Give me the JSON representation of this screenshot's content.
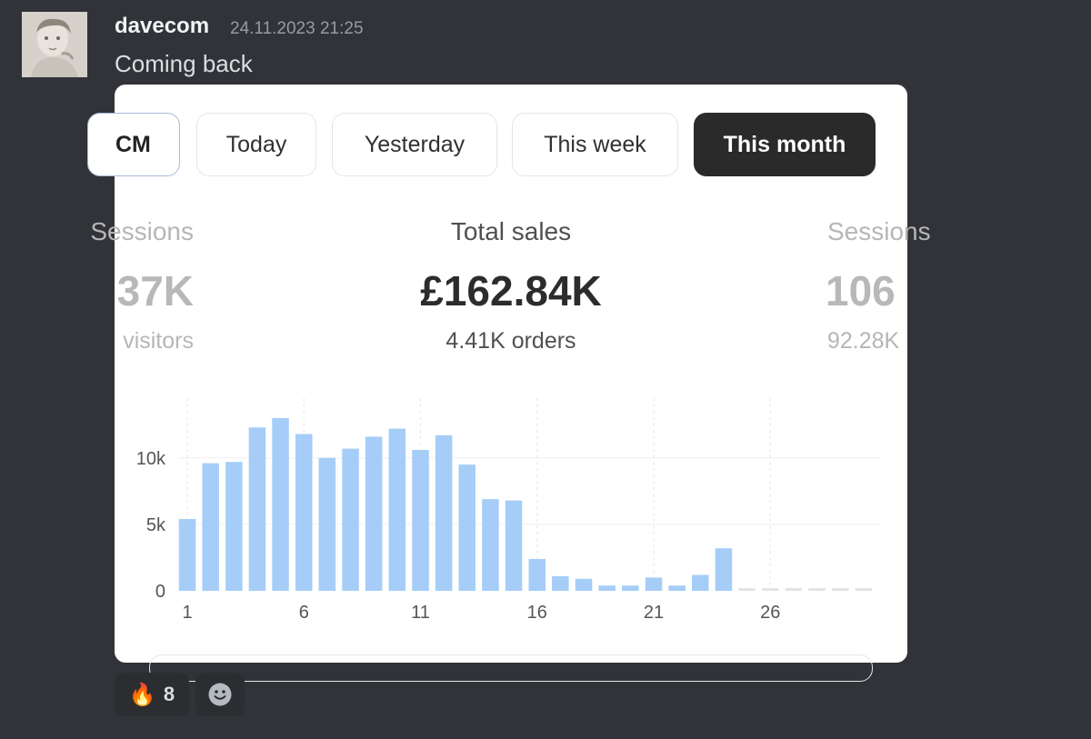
{
  "message": {
    "username": "davecom",
    "timestamp": "24.11.2023 21:25",
    "text": "Coming back"
  },
  "filters": {
    "partial_label": "CM",
    "items": [
      "Today",
      "Yesterday",
      "This week",
      "This month"
    ],
    "active": "This month"
  },
  "metrics": {
    "left": {
      "label": "Sessions",
      "value": "37K",
      "sub": "visitors"
    },
    "center": {
      "label": "Total sales",
      "value": "£162.84K",
      "sub": "4.41K orders"
    },
    "right": {
      "label": "Sessions",
      "value": "106",
      "sub": "92.28K"
    }
  },
  "chart_data": {
    "type": "bar",
    "x": [
      1,
      2,
      3,
      4,
      5,
      6,
      7,
      8,
      9,
      10,
      11,
      12,
      13,
      14,
      15,
      16,
      17,
      18,
      19,
      20,
      21,
      22,
      23,
      24,
      25,
      26,
      27,
      28,
      29,
      30
    ],
    "values": [
      5400,
      9600,
      9700,
      12300,
      13000,
      11800,
      10000,
      10700,
      11600,
      12200,
      10600,
      11700,
      9500,
      6900,
      6800,
      2400,
      1100,
      900,
      400,
      400,
      1000,
      400,
      1200,
      3200,
      0,
      0,
      0,
      0,
      0,
      0
    ],
    "xticks": [
      "1",
      "6",
      "11",
      "16",
      "21",
      "26"
    ],
    "yticks": [
      "0",
      "5k",
      "10k"
    ],
    "ylim": [
      0,
      14500
    ],
    "bar_color": "#a5cdf7",
    "future_color": "#e4e4e4",
    "grid": true
  },
  "reactions": [
    {
      "emoji": "🔥",
      "count": "8"
    },
    {
      "emoji": "add-reaction-icon"
    }
  ]
}
